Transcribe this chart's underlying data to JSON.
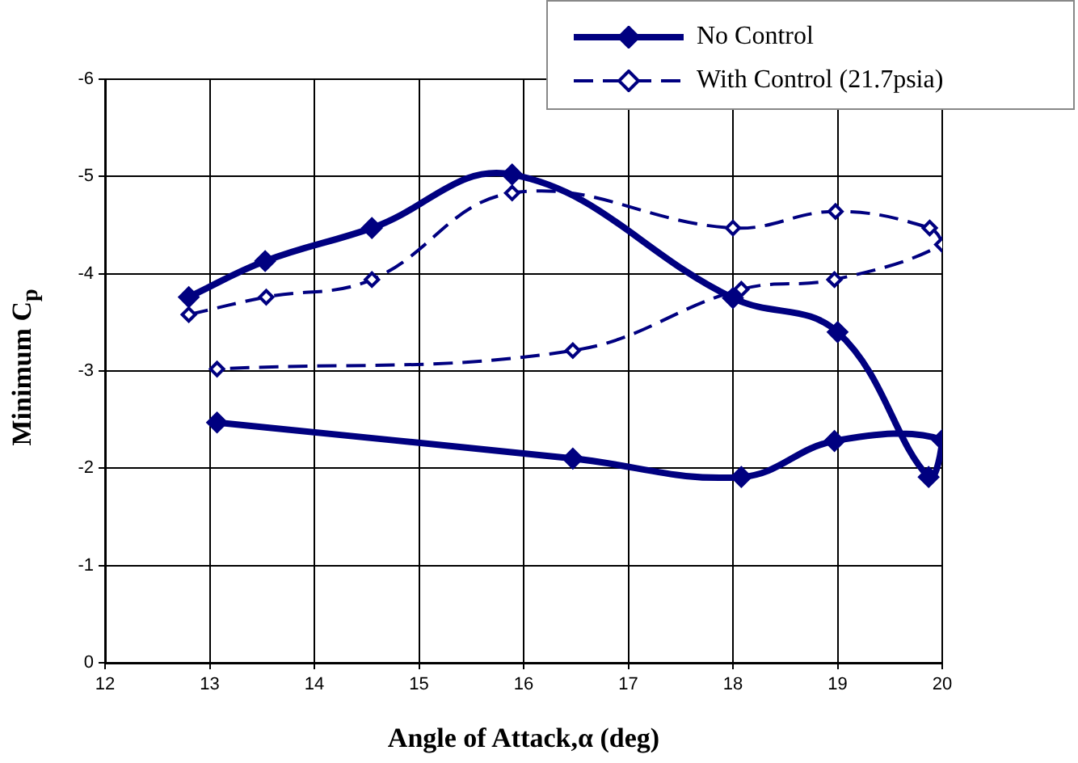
{
  "chart_data": {
    "type": "line",
    "xlabel": "Angle of Attack,α (deg)",
    "ylabel": "Minimum C$_{p}$",
    "xlim": [
      12,
      20
    ],
    "xticks": [
      12,
      13,
      14,
      15,
      16,
      17,
      18,
      19,
      20
    ],
    "ylim": [
      0,
      -6
    ],
    "yticks": [
      0,
      -1,
      -2,
      -3,
      -4,
      -5,
      -6
    ],
    "grid": true,
    "legend": "top right",
    "marker": "diamond",
    "series": [
      {
        "name": "No Control",
        "color": "#000080",
        "line_style": "solid",
        "x": [
          12.8,
          13.53,
          14.55,
          15.89,
          18.0,
          19.0,
          19.87,
          20.0,
          18.97,
          18.08,
          16.47,
          13.07
        ],
        "values": [
          -3.76,
          -4.13,
          -4.47,
          -5.02,
          -3.75,
          -3.4,
          -1.91,
          -2.29,
          -2.28,
          -1.91,
          -2.1,
          -2.47
        ]
      },
      {
        "name": "With Control (21.7psia)",
        "color": "#000080",
        "line_style": "dashed",
        "x": [
          12.8,
          13.54,
          14.55,
          15.89,
          18.0,
          18.98,
          19.88,
          20.0,
          18.97,
          18.08,
          16.47,
          13.07
        ],
        "values": [
          -3.58,
          -3.76,
          -3.94,
          -4.83,
          -4.47,
          -4.64,
          -4.47,
          -4.3,
          -3.94,
          -3.84,
          -3.21,
          -3.02
        ]
      }
    ]
  }
}
